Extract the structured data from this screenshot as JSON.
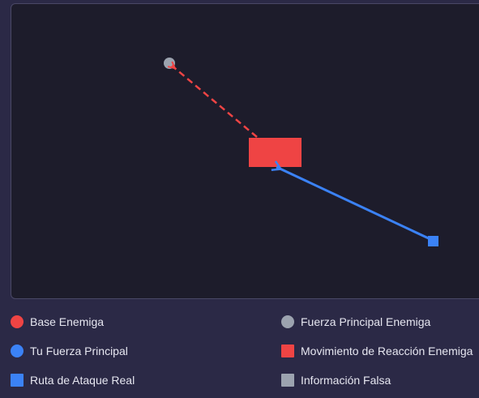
{
  "colors": {
    "enemy_base": "#ef4444",
    "your_force": "#3b82f6",
    "real_attack_route": "#3b82f6",
    "enemy_main_force": "#9ca3af",
    "enemy_reaction": "#ef4444",
    "false_info": "#9ca3af"
  },
  "legend": {
    "items": [
      {
        "label": "Base Enemiga",
        "shape": "circle",
        "color": "#ef4444"
      },
      {
        "label": "Fuerza Principal Enemiga",
        "shape": "circle",
        "color": "#9ca3af"
      },
      {
        "label": "Tu Fuerza Principal",
        "shape": "circle",
        "color": "#3b82f6"
      },
      {
        "label": "Movimiento de Reacción Enemiga",
        "shape": "square",
        "color": "#ef4444"
      },
      {
        "label": "Ruta de Ataque Real",
        "shape": "square",
        "color": "#3b82f6"
      },
      {
        "label": "Información Falsa",
        "shape": "square",
        "color": "#9ca3af"
      }
    ]
  }
}
